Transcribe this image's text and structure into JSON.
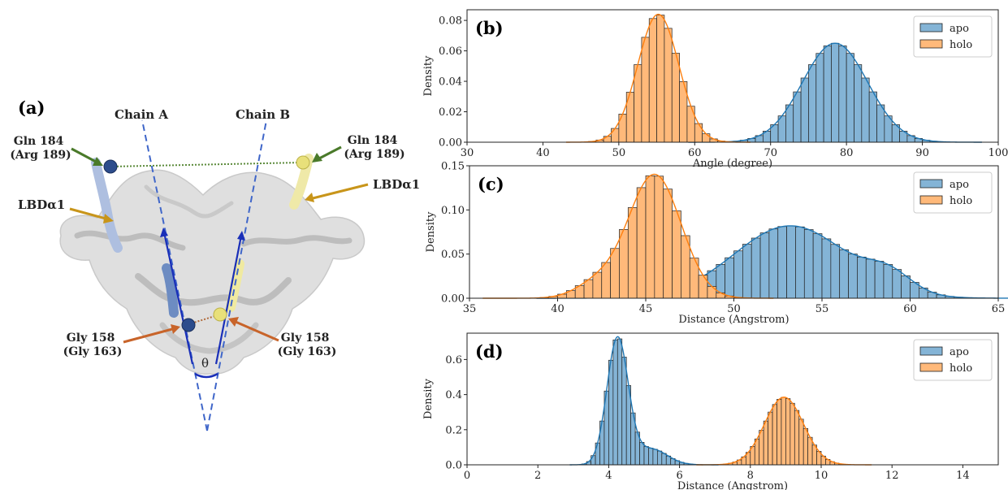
{
  "panel_a": {
    "label": "(a)",
    "chain_a": "Chain A",
    "chain_b": "Chain B",
    "theta": "θ",
    "gln_left": [
      "Gln 184",
      "(Arg 189)"
    ],
    "gln_right": [
      "Gln 184",
      "(Arg 189)"
    ],
    "lbd_left": "LBDα1",
    "lbd_right": "LBDα1",
    "gly_left": [
      "Gly 158",
      "(Gly 163)"
    ],
    "gly_right": [
      "Gly 158",
      "(Gly 163)"
    ],
    "colors": {
      "chain_a": "#2c4c8c",
      "chain_b": "#e8e07a",
      "axis_line": "#3f66c9",
      "gln_arrow": "#4a7a2a",
      "lbd_arrow": "#c8951a",
      "gly_arrow": "#c8642a"
    }
  },
  "chart_data": [
    {
      "type": "histogram",
      "panel": "(b)",
      "xlabel": "Angle (degree)",
      "ylabel": "Density",
      "xlim": [
        30,
        100
      ],
      "ylim": [
        0,
        0.087
      ],
      "xticks": [
        30,
        40,
        50,
        60,
        70,
        80,
        90,
        100
      ],
      "yticks": [
        0.0,
        0.02,
        0.04,
        0.06,
        0.08
      ],
      "ytick_labels": [
        "0.00",
        "0.02",
        "0.04",
        "0.06",
        "0.08"
      ],
      "legend": "top-right",
      "bin_width": 1,
      "series": [
        {
          "name": "apo",
          "color": "#1f77b4",
          "mean": 78.5,
          "sd": 4.3,
          "peak": 0.065
        },
        {
          "name": "holo",
          "color": "#ff7f0e",
          "mean": 55.2,
          "sd": 2.7,
          "peak": 0.084
        }
      ]
    },
    {
      "type": "histogram",
      "panel": "(c)",
      "xlabel": "Distance (Angstrom)",
      "ylabel": "Density",
      "xlim": [
        35,
        65
      ],
      "ylim": [
        0,
        0.15
      ],
      "xticks": [
        35,
        40,
        45,
        50,
        55,
        60,
        65
      ],
      "yticks": [
        0.0,
        0.05,
        0.1,
        0.15
      ],
      "ytick_labels": [
        "0.00",
        "0.05",
        "0.10",
        "0.15"
      ],
      "legend": "top-right",
      "bin_width": 0.5,
      "series": [
        {
          "name": "apo",
          "color": "#1f77b4",
          "mean": 53.2,
          "sd": 3.2,
          "peak": 0.082,
          "secondary": {
            "mean": 58.8,
            "sd": 1.3,
            "peak": 0.02
          }
        },
        {
          "name": "holo",
          "color": "#ff7f0e",
          "mean": 45.5,
          "sd": 1.5,
          "peak": 0.14,
          "left_tail": {
            "mean": 42.2,
            "sd": 1.2,
            "peak": 0.016
          }
        }
      ]
    },
    {
      "type": "histogram",
      "panel": "(d)",
      "xlabel": "Distance (Angstrom)",
      "ylabel": "Density",
      "xlim": [
        0,
        15
      ],
      "ylim": [
        0,
        0.75
      ],
      "xticks": [
        0,
        2,
        4,
        6,
        8,
        10,
        12,
        14
      ],
      "yticks": [
        0.0,
        0.2,
        0.4,
        0.6
      ],
      "ytick_labels": [
        "0.0",
        "0.2",
        "0.4",
        "0.6"
      ],
      "legend": "top-right",
      "bin_width": 0.125,
      "series": [
        {
          "name": "apo",
          "color": "#1f77b4",
          "mean": 4.25,
          "sd": 0.3,
          "peak": 0.72,
          "right_tail": {
            "mean": 5.2,
            "sd": 0.45,
            "peak": 0.09
          }
        },
        {
          "name": "holo",
          "color": "#ff7f0e",
          "mean": 8.95,
          "sd": 0.55,
          "peak": 0.385
        }
      ]
    }
  ]
}
